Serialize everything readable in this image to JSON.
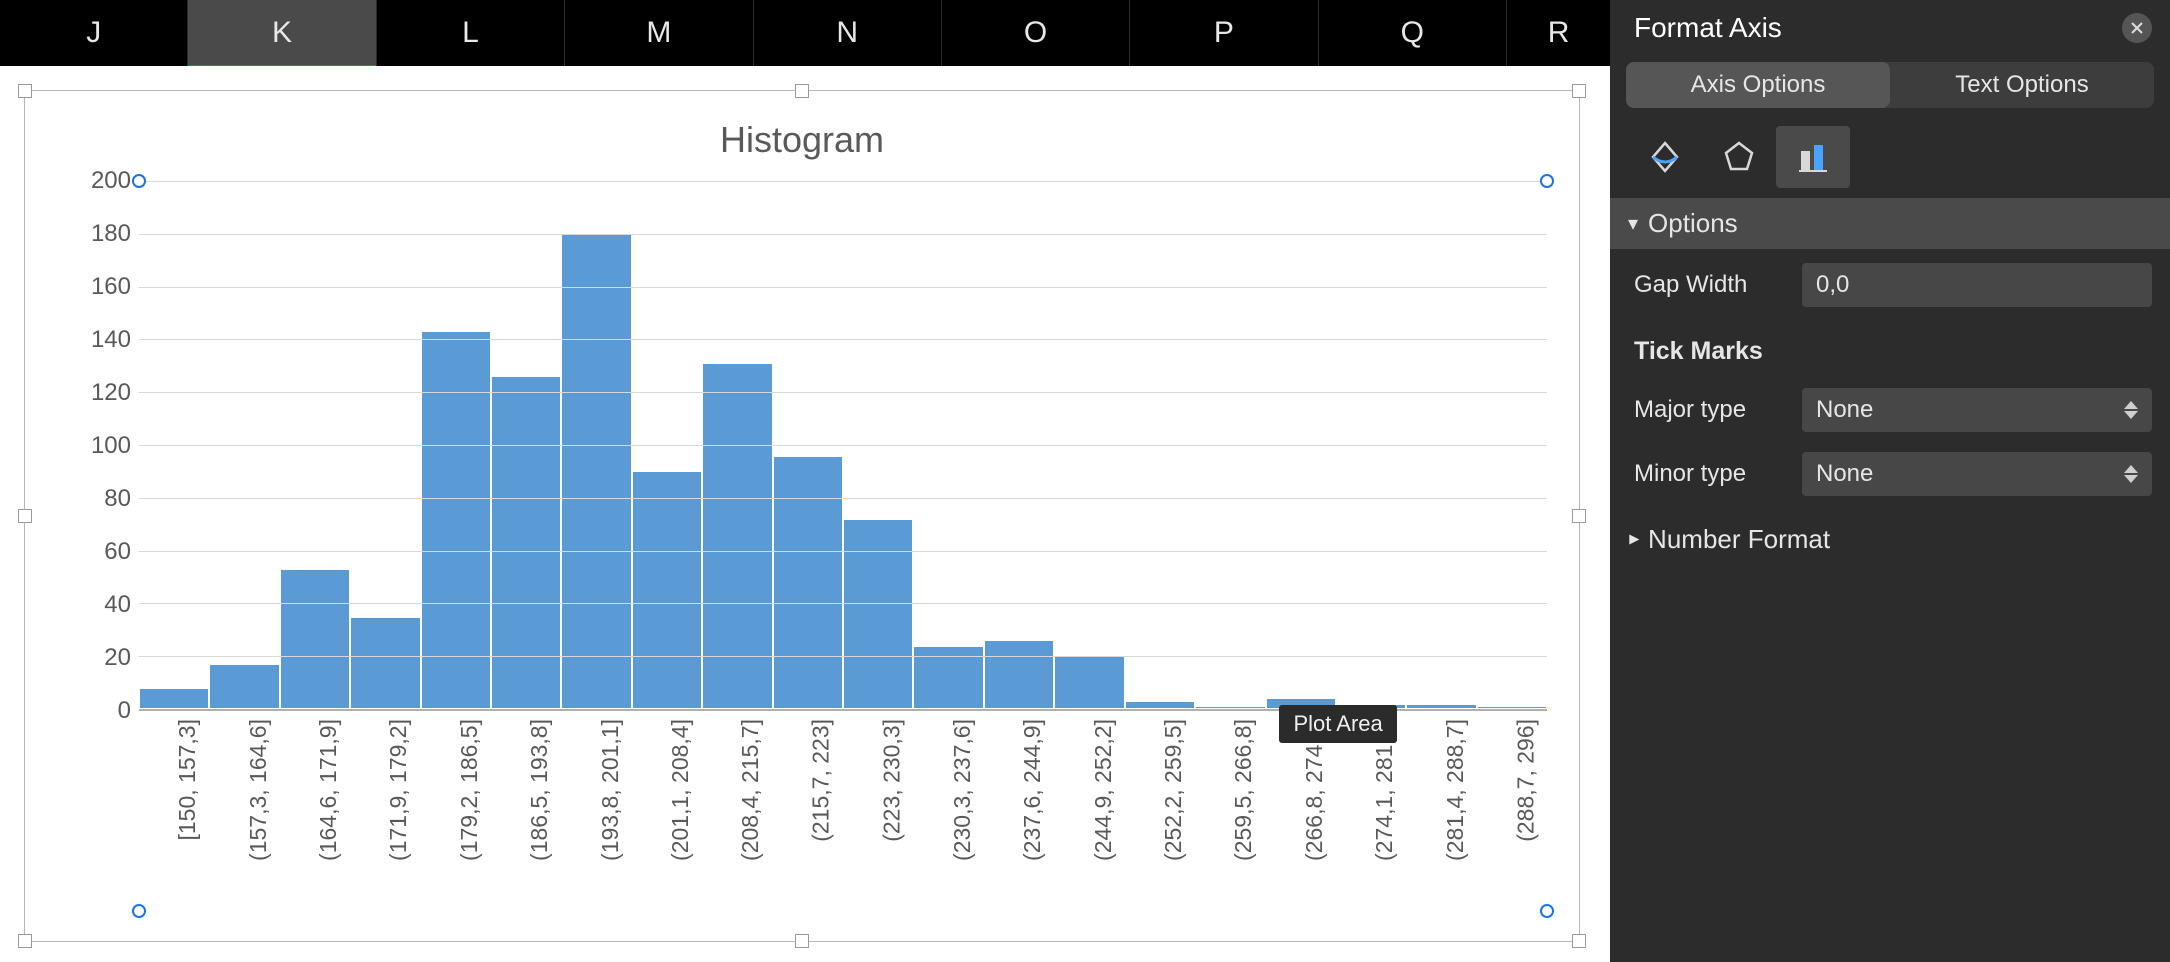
{
  "columns": {
    "headers": [
      "J",
      "K",
      "L",
      "M",
      "N",
      "O",
      "P",
      "Q",
      "R"
    ],
    "selected_index": 1
  },
  "chart": {
    "title": "Histogram",
    "title_color": "#595959",
    "title_fontsize": 36,
    "bar_color": "#5b9bd5",
    "bar_border_color": "#ffffff",
    "grid_color": "#d9d9d9",
    "axis_color": "#b0b0b0",
    "tick_font_color": "#595959",
    "tick_fontsize": 24,
    "y": {
      "min": 0,
      "max": 200,
      "step": 20,
      "ticks": [
        200,
        180,
        160,
        140,
        120,
        100,
        80,
        60,
        40,
        20,
        0
      ]
    },
    "series": {
      "labels": [
        "[150, 157,3]",
        "(157,3, 164,6]",
        "(164,6, 171,9]",
        "(171,9, 179,2]",
        "(179,2, 186,5]",
        "(186,5, 193,8]",
        "(193,8, 201,1]",
        "(201,1, 208,4]",
        "(208,4, 215,7]",
        "(215,7, 223]",
        "(223, 230,3]",
        "(230,3, 237,6]",
        "(237,6, 244,9]",
        "(244,9, 252,2]",
        "(252,2, 259,5]",
        "(259,5, 266,8]",
        "(266,8, 274,1]",
        "(274,1, 281,4]",
        "(281,4, 288,7]",
        "(288,7, 296]"
      ],
      "values": [
        8,
        17,
        53,
        35,
        143,
        126,
        180,
        90,
        131,
        96,
        72,
        24,
        26,
        20,
        3,
        1,
        4,
        2,
        2,
        1
      ]
    },
    "tooltip": "Plot Area",
    "tooltip_bg": "#2b2b2b"
  },
  "panel": {
    "title": "Format Axis",
    "tabs": {
      "axis": "Axis Options",
      "text": "Text Options",
      "active": 0
    },
    "icons": {
      "active_index": 2
    },
    "sections": {
      "options": {
        "label": "Options",
        "gap_width_label": "Gap Width",
        "gap_width_value": "0,0",
        "tick_marks_label": "Tick Marks",
        "major_label": "Major type",
        "major_value": "None",
        "minor_label": "Minor type",
        "minor_value": "None"
      },
      "number_format": {
        "label": "Number Format"
      }
    },
    "colors": {
      "panel_bg": "#2c2c2c",
      "section_bg": "#4a4a4a",
      "control_bg": "#474747",
      "tab_bg": "#3d3d3d",
      "tab_active_bg": "#565656"
    }
  }
}
